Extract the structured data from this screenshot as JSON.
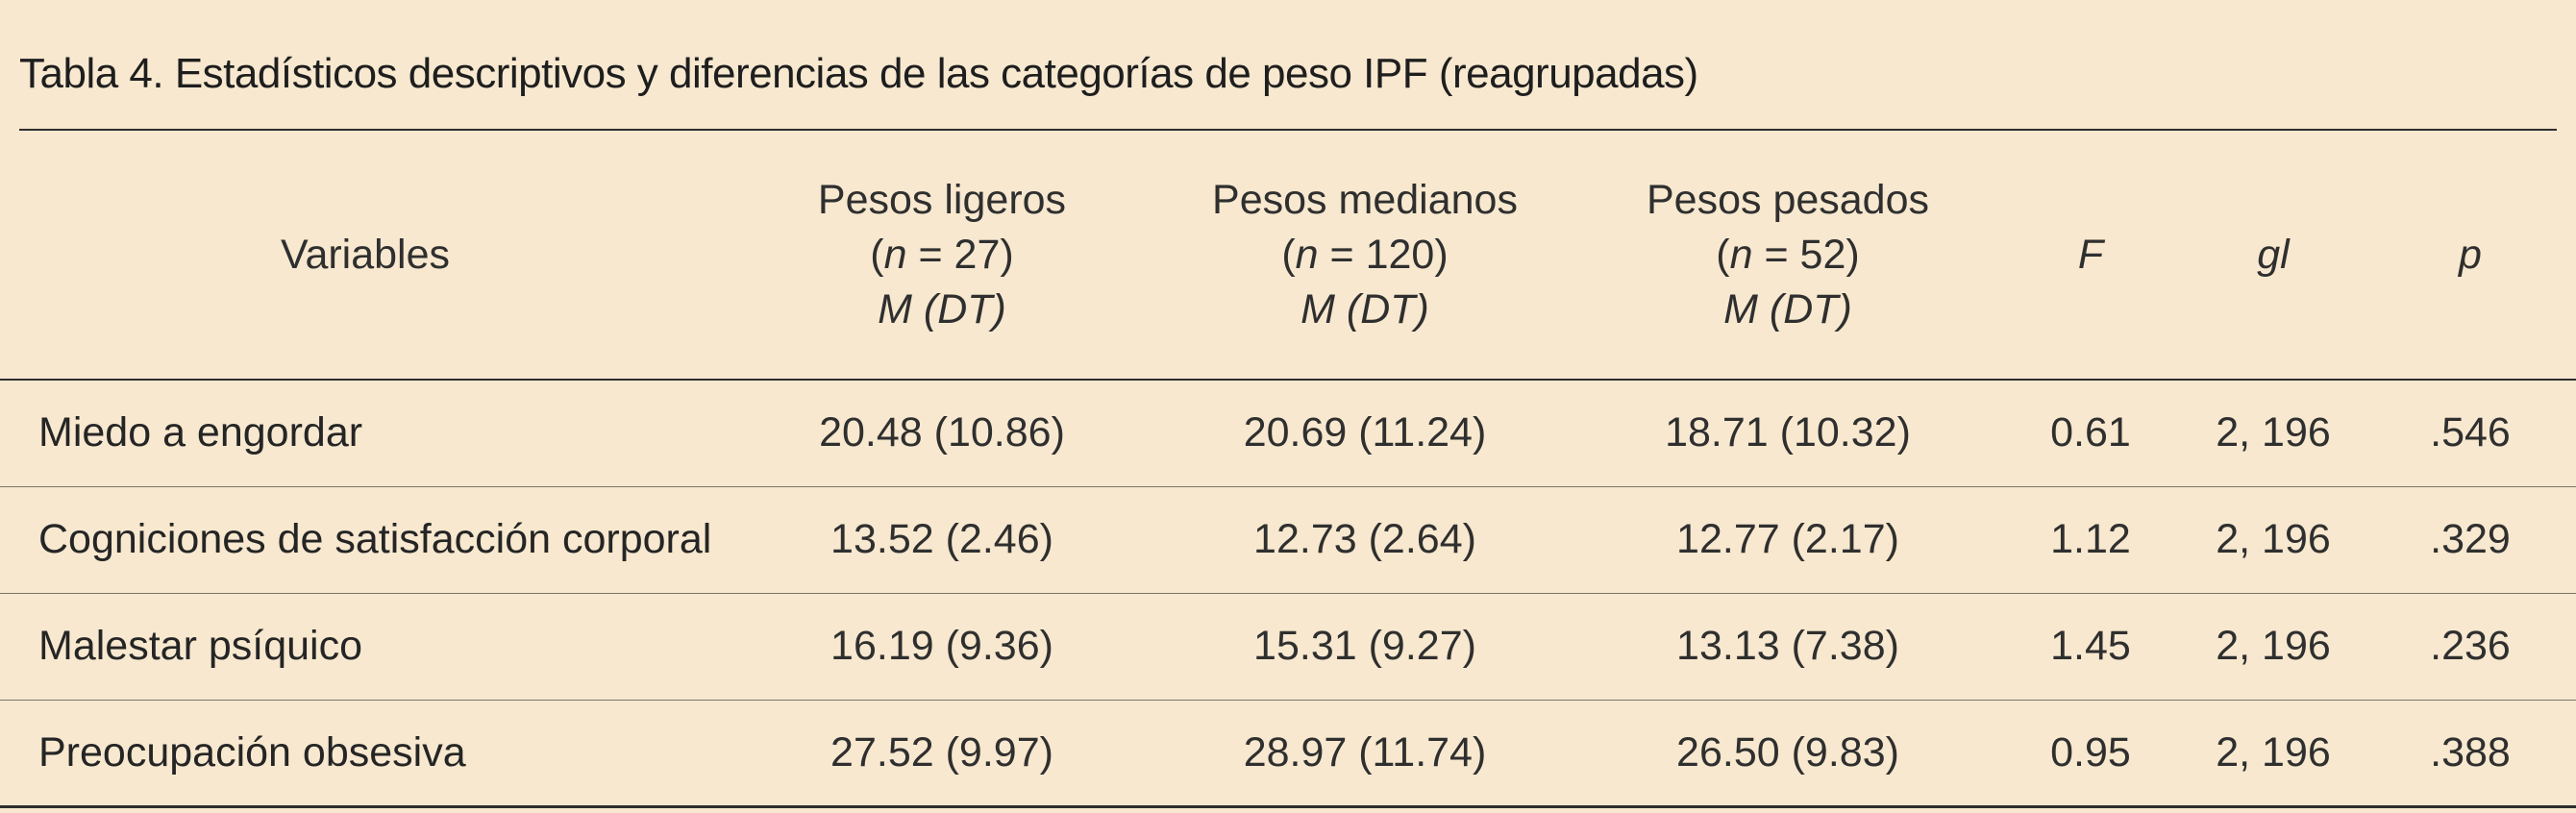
{
  "table": {
    "title": "Tabla 4. Estadísticos descriptivos y diferencias de las categorías de peso IPF (reagrupadas)",
    "headers": {
      "variables": "Variables",
      "groups": [
        {
          "name": "Pesos ligeros",
          "n_prefix": "(",
          "n_label": "n",
          "n_value": " = 27)",
          "stat": "M (DT)"
        },
        {
          "name": "Pesos medianos",
          "n_prefix": "(",
          "n_label": "n",
          "n_value": " = 120)",
          "stat": "M (DT)"
        },
        {
          "name": "Pesos pesados",
          "n_prefix": "(",
          "n_label": "n",
          "n_value": " = 52)",
          "stat": "M (DT)"
        }
      ],
      "f": "F",
      "gl": "gl",
      "p": "p"
    },
    "rows": [
      {
        "variable": "Miedo a engordar",
        "g1": "20.48 (10.86)",
        "g2": "20.69 (11.24)",
        "g3": "18.71 (10.32)",
        "f": "0.61",
        "gl": "2, 196",
        "p": ".546"
      },
      {
        "variable": "Cogniciones de satisfacción corporal",
        "g1": "13.52 (2.46)",
        "g2": "12.73 (2.64)",
        "g3": "12.77 (2.17)",
        "f": "1.12",
        "gl": "2, 196",
        "p": ".329"
      },
      {
        "variable": "Malestar psíquico",
        "g1": "16.19 (9.36)",
        "g2": "15.31 (9.27)",
        "g3": "13.13 (7.38)",
        "f": "1.45",
        "gl": "2, 196",
        "p": ".236"
      },
      {
        "variable": "Preocupación obsesiva",
        "g1": "27.52 (9.97)",
        "g2": "28.97 (11.74)",
        "g3": "26.50 (9.83)",
        "f": "0.95",
        "gl": "2, 196",
        "p": ".388"
      }
    ]
  },
  "colors": {
    "background": "#f7e8cf",
    "rule": "#2e2e2e",
    "text": "#2b2b2b"
  }
}
